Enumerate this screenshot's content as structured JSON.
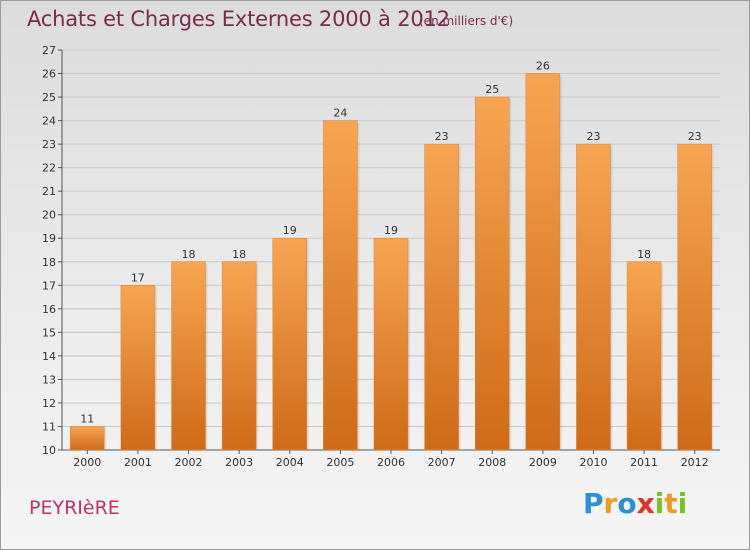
{
  "title": "Achats et Charges Externes 2000 à 2012",
  "subtitle": "(en milliers d'€)",
  "town": "PEYRIèRE",
  "logo": {
    "letters": [
      "P",
      "r",
      "o",
      "x",
      "i",
      "t",
      "i"
    ],
    "colors": [
      "#2a8fd6",
      "#f39a1e",
      "#2a8fd6",
      "#e0312f",
      "#7bbf2a",
      "#f39a1e",
      "#7bbf2a"
    ]
  },
  "colors": {
    "bar": "#f08a30",
    "bar_dark": "#d06a18",
    "grid": "#c8c8c8"
  },
  "chart_data": {
    "type": "bar",
    "title": "Achats et Charges Externes 2000 à 2012",
    "subtitle": "(en milliers d'€)",
    "categories": [
      "2000",
      "2001",
      "2002",
      "2003",
      "2004",
      "2005",
      "2006",
      "2007",
      "2008",
      "2009",
      "2010",
      "2011",
      "2012"
    ],
    "values": [
      11,
      17,
      18,
      18,
      19,
      24,
      19,
      23,
      25,
      26,
      23,
      18,
      23
    ],
    "ylim": [
      10,
      27
    ],
    "yticks": [
      10,
      11,
      12,
      13,
      14,
      15,
      16,
      17,
      18,
      19,
      20,
      21,
      22,
      23,
      24,
      25,
      26,
      27
    ],
    "grid": true
  }
}
